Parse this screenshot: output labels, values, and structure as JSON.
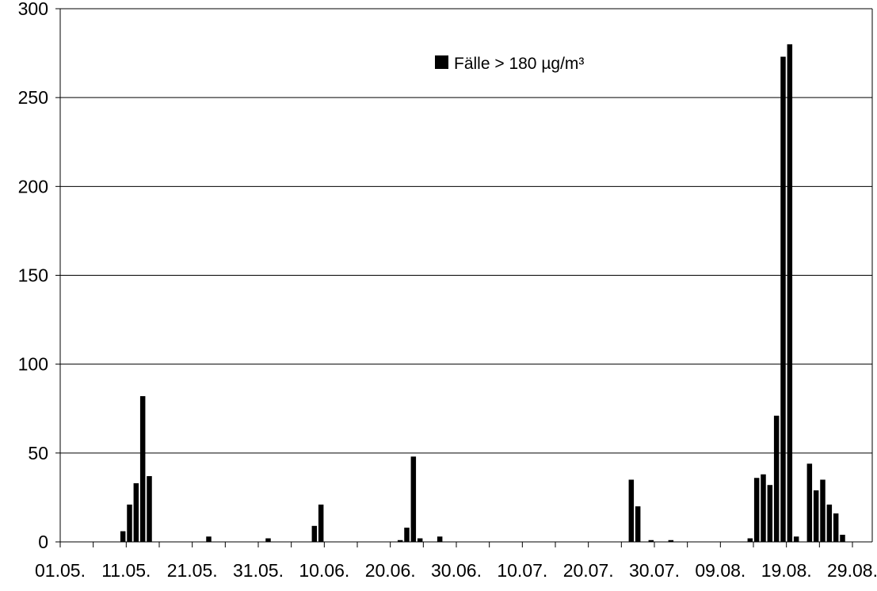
{
  "chart_data": {
    "type": "bar",
    "x_type": "date",
    "x_range": [
      "01.05.",
      "01.09."
    ],
    "x_ticks": [
      "01.05.",
      "11.05.",
      "21.05.",
      "31.05.",
      "10.06.",
      "20.06.",
      "30.06.",
      "10.07.",
      "20.07.",
      "30.07.",
      "09.08.",
      "19.08.",
      "29.08."
    ],
    "ylim": [
      0,
      300
    ],
    "y_ticks": [
      0,
      50,
      100,
      150,
      200,
      250,
      300
    ],
    "grid": true,
    "legend": {
      "position": "top-center"
    },
    "bar_color": "#000000",
    "series": [
      {
        "name": "Fälle > 180 µg/m³",
        "points": [
          {
            "x": "10.05.",
            "y": 6
          },
          {
            "x": "11.05.",
            "y": 21
          },
          {
            "x": "12.05.",
            "y": 33
          },
          {
            "x": "13.05.",
            "y": 82
          },
          {
            "x": "14.05.",
            "y": 37
          },
          {
            "x": "23.05.",
            "y": 3
          },
          {
            "x": "01.06.",
            "y": 2
          },
          {
            "x": "08.06.",
            "y": 9
          },
          {
            "x": "09.06.",
            "y": 21
          },
          {
            "x": "21.06.",
            "y": 1
          },
          {
            "x": "22.06.",
            "y": 8
          },
          {
            "x": "23.06.",
            "y": 48
          },
          {
            "x": "24.06.",
            "y": 2
          },
          {
            "x": "27.06.",
            "y": 3
          },
          {
            "x": "26.07.",
            "y": 35
          },
          {
            "x": "27.07.",
            "y": 20
          },
          {
            "x": "29.07.",
            "y": 1
          },
          {
            "x": "01.08.",
            "y": 1
          },
          {
            "x": "13.08.",
            "y": 2
          },
          {
            "x": "14.08.",
            "y": 36
          },
          {
            "x": "15.08.",
            "y": 38
          },
          {
            "x": "16.08.",
            "y": 32
          },
          {
            "x": "17.08.",
            "y": 71
          },
          {
            "x": "18.08.",
            "y": 273
          },
          {
            "x": "19.08.",
            "y": 280
          },
          {
            "x": "20.08.",
            "y": 3
          },
          {
            "x": "22.08.",
            "y": 44
          },
          {
            "x": "23.08.",
            "y": 29
          },
          {
            "x": "24.08.",
            "y": 35
          },
          {
            "x": "25.08.",
            "y": 21
          },
          {
            "x": "26.08.",
            "y": 16
          },
          {
            "x": "27.08.",
            "y": 4
          }
        ]
      }
    ]
  }
}
